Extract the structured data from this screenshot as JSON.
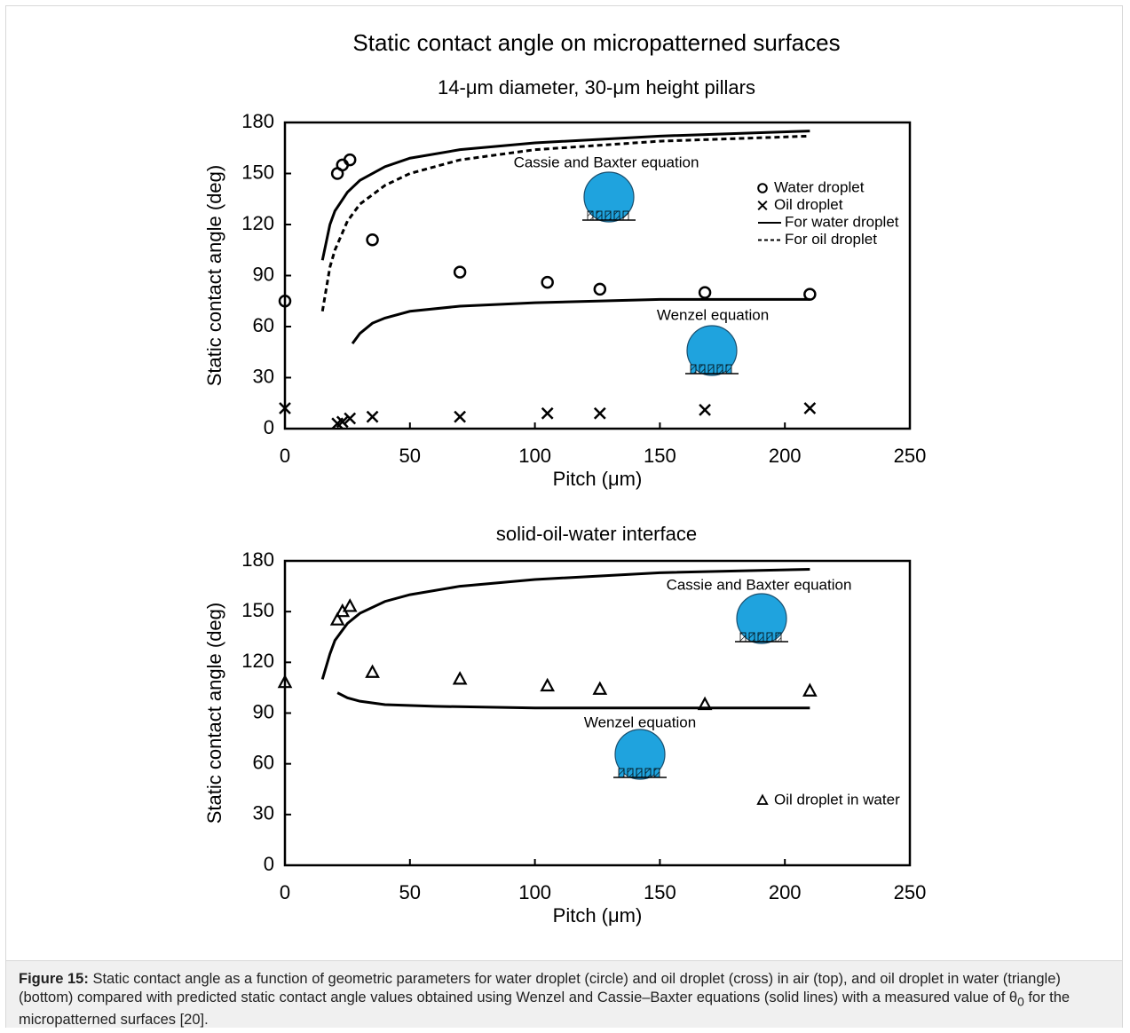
{
  "chart_data": [
    {
      "type": "scatter",
      "title": "Static contact angle on micropatterned surfaces",
      "subtitle": "14-μm diameter, 30-μm height pillars",
      "x_label": "Pitch (μm)",
      "y_label": "Static contact angle (deg)",
      "xlim": [
        0,
        250
      ],
      "xticks": [
        0,
        50,
        100,
        150,
        200,
        250
      ],
      "ylim": [
        0,
        180
      ],
      "yticks": [
        0,
        30,
        60,
        90,
        120,
        150,
        180
      ],
      "grid": false,
      "legend": "upper right",
      "annotations": [
        "Cassie and Baxter equation",
        "Wenzel equation"
      ],
      "series": [
        {
          "name": "Water droplet",
          "kind": "marker",
          "marker": "circle",
          "color": "#000000",
          "x": [
            0,
            21,
            23,
            26,
            35,
            70,
            105,
            126,
            168,
            210
          ],
          "values": [
            75,
            150,
            155,
            158,
            111,
            92,
            86,
            82,
            80,
            79
          ]
        },
        {
          "name": "Oil droplet",
          "kind": "marker",
          "marker": "cross",
          "color": "#000000",
          "x": [
            0,
            21,
            23,
            26,
            35,
            70,
            105,
            126,
            168,
            210
          ],
          "values": [
            12,
            3,
            4,
            6,
            7,
            7,
            9,
            9,
            11,
            12
          ]
        },
        {
          "name": "For water droplet",
          "kind": "line",
          "style": "solid",
          "color": "#000000",
          "x": [
            15,
            18,
            20,
            25,
            30,
            40,
            50,
            70,
            100,
            150,
            210,
            null,
            27,
            30,
            35,
            40,
            50,
            70,
            100,
            150,
            210
          ],
          "values": [
            99,
            120,
            128,
            139,
            146,
            154,
            159,
            164,
            168,
            172,
            175,
            null,
            50,
            56,
            62,
            65,
            69,
            72,
            74,
            76,
            76
          ]
        },
        {
          "name": "For oil droplet",
          "kind": "line",
          "style": "dashed",
          "color": "#000000",
          "x": [
            15,
            18,
            20,
            25,
            30,
            40,
            50,
            70,
            100,
            150,
            210
          ],
          "values": [
            69,
            95,
            105,
            122,
            132,
            143,
            150,
            158,
            164,
            169,
            172
          ]
        }
      ]
    },
    {
      "type": "scatter",
      "title": "solid-oil-water interface",
      "x_label": "Pitch (μm)",
      "y_label": "Static contact angle (deg)",
      "xlim": [
        0,
        250
      ],
      "xticks": [
        0,
        50,
        100,
        150,
        200,
        250
      ],
      "ylim": [
        0,
        180
      ],
      "yticks": [
        0,
        30,
        60,
        90,
        120,
        150,
        180
      ],
      "grid": false,
      "legend": "lower right",
      "annotations": [
        "Cassie and Baxter equation",
        "Wenzel equation"
      ],
      "series": [
        {
          "name": "Oil droplet in water",
          "kind": "marker",
          "marker": "triangle",
          "color": "#000000",
          "x": [
            0,
            21,
            23,
            26,
            35,
            70,
            105,
            126,
            168,
            210
          ],
          "values": [
            108,
            145,
            150,
            153,
            114,
            110,
            106,
            104,
            95,
            103
          ]
        },
        {
          "kind": "line",
          "style": "solid",
          "color": "#000000",
          "x": [
            15,
            18,
            20,
            25,
            30,
            40,
            50,
            70,
            100,
            150,
            210,
            null,
            21,
            25,
            30,
            40,
            60,
            100,
            210
          ],
          "values": [
            110,
            125,
            133,
            143,
            149,
            156,
            160,
            165,
            169,
            173,
            175,
            null,
            102,
            99,
            97,
            95,
            94,
            93,
            93
          ]
        }
      ]
    }
  ],
  "caption": {
    "label": "Figure 15:",
    "text": "Static contact angle as a function of geometric parameters for water droplet (circle) and oil droplet (cross) in air (top), and oil droplet in water (triangle) (bottom) compared with predicted static contact angle values obtained using Wenzel and Cassie–Baxter equations (solid lines) with a measured value of θ",
    "subscript": "0",
    "text_end": "for the micropatterned surfaces [20]."
  }
}
